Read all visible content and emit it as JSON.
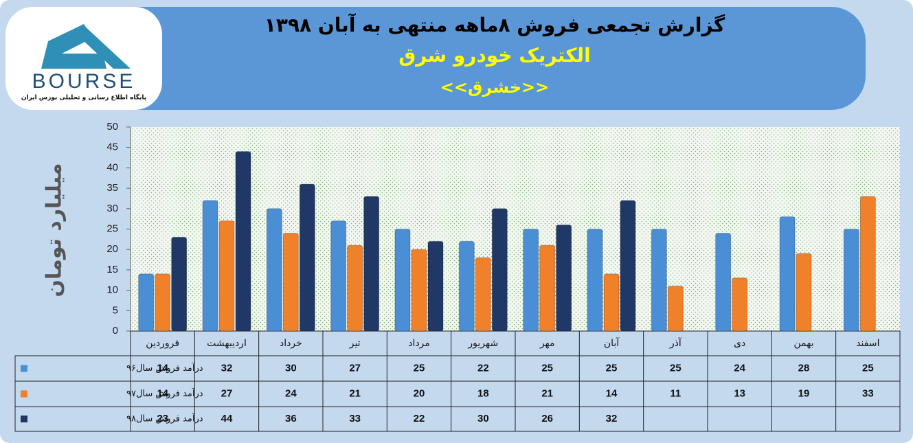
{
  "logo": {
    "text": "BOURSE",
    "subtext": "پایگاه اطلاع رسانی و تحلیلی بورس ایران"
  },
  "chart_data": {
    "type": "bar",
    "title": "گزارش تجمعی فروش  ۸ماهه منتهی به آبان ۱۳۹۸",
    "subtitle": "الکتریک خودرو شرق",
    "symbol": "<<خشرق>>",
    "y_label": "میلیارد تومان",
    "categories": [
      "فروردین",
      "اردیبهشت",
      "خرداد",
      "تیر",
      "مرداد",
      "شهریور",
      "مهر",
      "آبان",
      "آذر",
      "دی",
      "بهمن",
      "اسفند"
    ],
    "series": [
      {
        "name": "درآمد فروش سال۹۶",
        "color": "#4a8fd6",
        "values": [
          14,
          32,
          30,
          27,
          25,
          22,
          25,
          25,
          25,
          24,
          28,
          25
        ]
      },
      {
        "name": "درآمد فروش سال۹۷",
        "color": "#f0802a",
        "values": [
          14,
          27,
          24,
          21,
          20,
          18,
          21,
          14,
          11,
          13,
          19,
          33
        ]
      },
      {
        "name": "درآمد فروش سال۹۸",
        "color": "#1f3866",
        "values": [
          23,
          44,
          36,
          33,
          22,
          30,
          26,
          32,
          null,
          null,
          null,
          null
        ]
      }
    ],
    "ylim": [
      0,
      50
    ],
    "yticks": [
      0,
      5,
      10,
      15,
      20,
      25,
      30,
      35,
      40,
      45,
      50
    ]
  }
}
